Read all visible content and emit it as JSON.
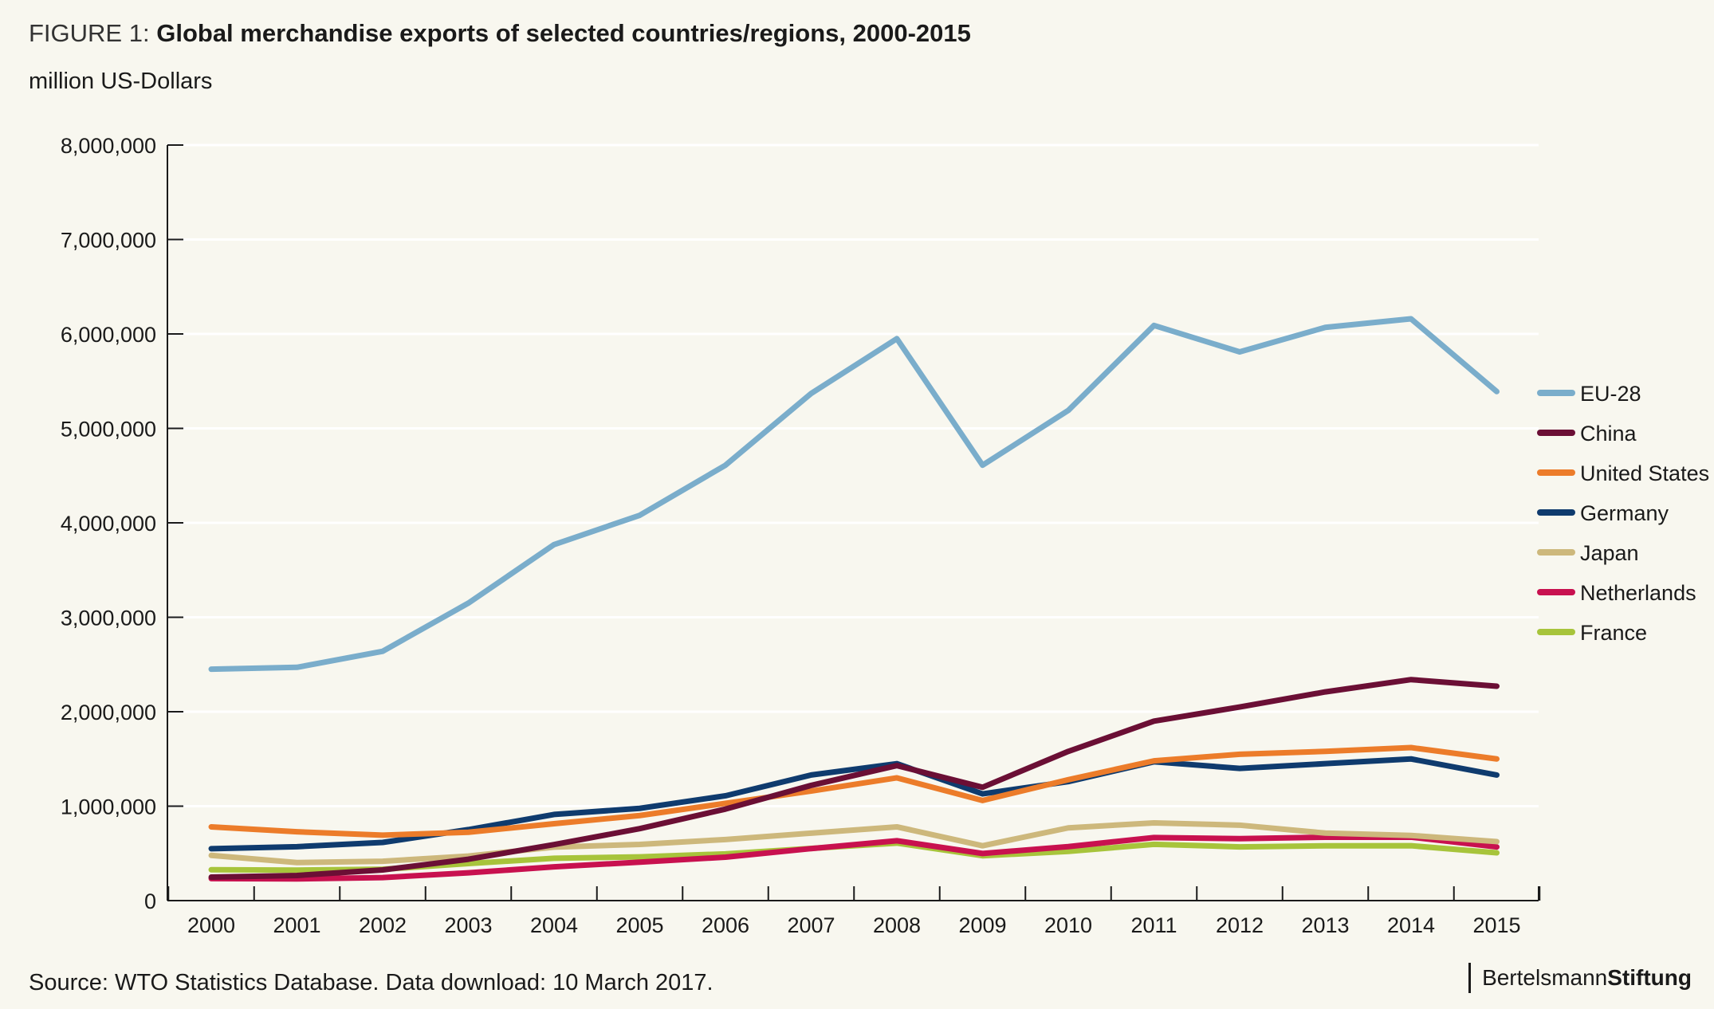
{
  "header": {
    "title_prefix": "FIGURE 1:",
    "title": "Global merchandise exports of selected countries/regions, 2000-2015",
    "subtitle": "million US-Dollars"
  },
  "footer": {
    "source": "Source: WTO Statistics Database. Data download: 10 March 2017.",
    "logo_part1": "Bertelsmann",
    "logo_part2": "Stiftung"
  },
  "chart_data": {
    "type": "line",
    "title": "Global merchandise exports of selected countries/regions, 2000-2015",
    "ylabel": "million US-Dollars",
    "xlabel": "",
    "ylim": [
      0,
      8000000
    ],
    "yticks": [
      0,
      1000000,
      2000000,
      3000000,
      4000000,
      5000000,
      6000000,
      7000000,
      8000000
    ],
    "ytick_labels": [
      "0",
      "1,000,000",
      "2,000,000",
      "3,000,000",
      "4,000,000",
      "5,000,000",
      "6,000,000",
      "7,000,000",
      "8,000,000"
    ],
    "grid": true,
    "legend_position": "right",
    "x": [
      "2000",
      "2001",
      "2002",
      "2003",
      "2004",
      "2005",
      "2006",
      "2007",
      "2008",
      "2009",
      "2010",
      "2011",
      "2012",
      "2013",
      "2014",
      "2015"
    ],
    "series": [
      {
        "name": "EU-28",
        "color": "#7aadcb",
        "values": [
          2450000,
          2470000,
          2640000,
          3150000,
          3770000,
          4080000,
          4610000,
          5370000,
          5950000,
          4610000,
          5190000,
          6090000,
          5810000,
          6070000,
          6160000,
          5390000
        ]
      },
      {
        "name": "China",
        "color": "#6b0f35",
        "values": [
          249000,
          266000,
          325000,
          438000,
          593000,
          762000,
          969000,
          1220000,
          1430000,
          1200000,
          1580000,
          1900000,
          2050000,
          2210000,
          2340000,
          2270000
        ]
      },
      {
        "name": "United States",
        "color": "#ec7c2a",
        "values": [
          781000,
          729000,
          693000,
          724000,
          814000,
          901000,
          1030000,
          1160000,
          1300000,
          1060000,
          1280000,
          1480000,
          1550000,
          1580000,
          1620000,
          1500000
        ]
      },
      {
        "name": "Germany",
        "color": "#0f3b6e",
        "values": [
          550000,
          571000,
          616000,
          752000,
          912000,
          977000,
          1110000,
          1330000,
          1450000,
          1130000,
          1260000,
          1470000,
          1400000,
          1450000,
          1500000,
          1330000
        ]
      },
      {
        "name": "Japan",
        "color": "#cdb87c",
        "values": [
          479000,
          403000,
          417000,
          472000,
          566000,
          595000,
          647000,
          714000,
          781000,
          581000,
          770000,
          823000,
          799000,
          715000,
          690000,
          625000
        ]
      },
      {
        "name": "Netherlands",
        "color": "#c8114f",
        "values": [
          233000,
          230000,
          244000,
          294000,
          358000,
          407000,
          460000,
          551000,
          634000,
          499000,
          572000,
          668000,
          656000,
          671000,
          672000,
          568000
        ]
      },
      {
        "name": "France",
        "color": "#a7c43b",
        "values": [
          327000,
          323000,
          332000,
          392000,
          448000,
          463000,
          495000,
          553000,
          609000,
          475000,
          521000,
          596000,
          569000,
          580000,
          581000,
          506000
        ]
      }
    ]
  }
}
